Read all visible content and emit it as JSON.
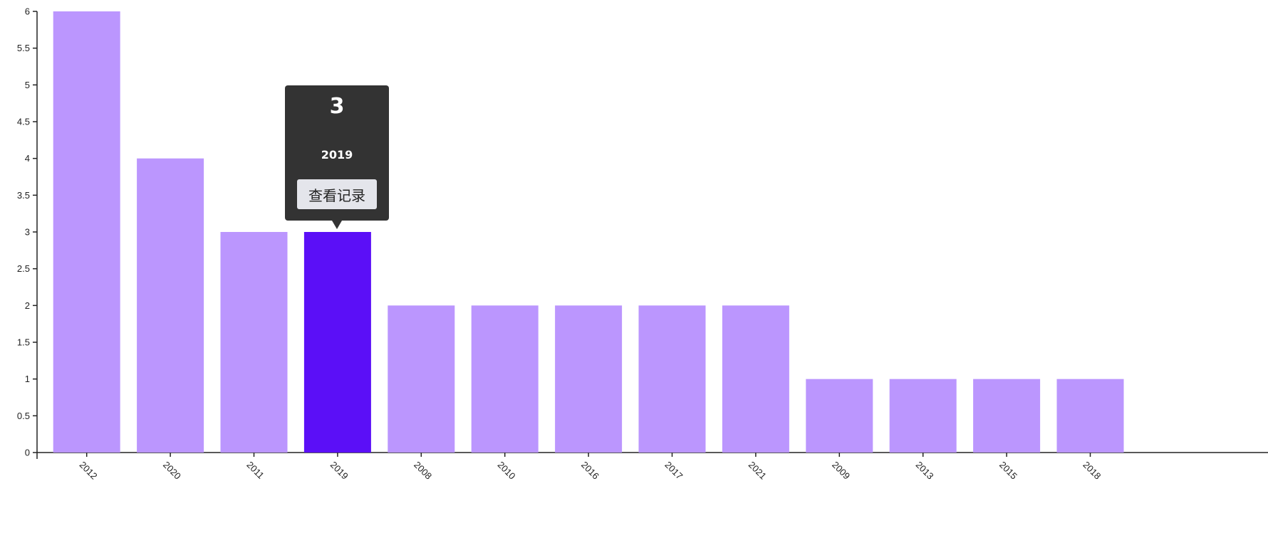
{
  "chart_data": {
    "type": "bar",
    "categories": [
      "2012",
      "2020",
      "2011",
      "2019",
      "2008",
      "2010",
      "2016",
      "2017",
      "2021",
      "2009",
      "2013",
      "2015",
      "2018"
    ],
    "values": [
      6,
      4,
      3,
      3,
      2,
      2,
      2,
      2,
      2,
      1,
      1,
      1,
      1
    ],
    "ylim": [
      0,
      6
    ],
    "yticks": [
      "0",
      "0.5",
      "1",
      "1.5",
      "2",
      "2.5",
      "3",
      "3.5",
      "4",
      "4.5",
      "5",
      "5.5",
      "6"
    ],
    "highlighted_category": "2019",
    "colors": {
      "bar": "#bb96fe",
      "bar_highlight": "#5b0ff7",
      "axis": "#222222"
    },
    "grid": false
  },
  "tooltip": {
    "value": "3",
    "category": "2019",
    "button_label": "查看记录"
  }
}
